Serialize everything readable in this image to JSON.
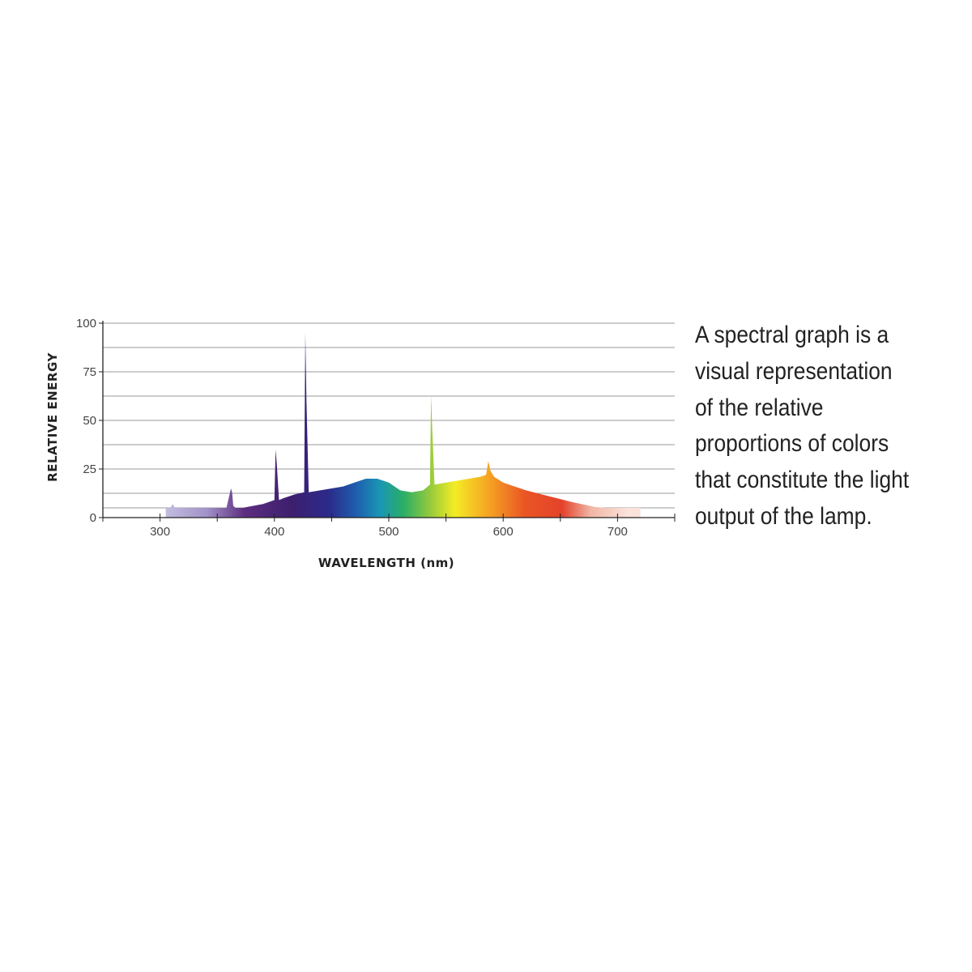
{
  "caption": "A spectral graph is a\nvisual representation\nof the relative\nproportions of colors\nthat constitute the light\noutput of the lamp.",
  "chart_data": {
    "type": "area",
    "title": "",
    "xlabel": "WAVELENGTH (nm)",
    "ylabel": "RELATIVE ENERGY",
    "xlim": [
      250,
      750
    ],
    "ylim": [
      0,
      100
    ],
    "x_ticks": [
      300,
      400,
      500,
      600,
      700
    ],
    "y_ticks": [
      0,
      25,
      50,
      75,
      100
    ],
    "grid": true,
    "fill": "visible-spectrum gradient",
    "series": [
      {
        "x": [
          305,
          309,
          311,
          313,
          320,
          358,
          362,
          363,
          364,
          366,
          372,
          390,
          400,
          401,
          402,
          404,
          408,
          418,
          426,
          427,
          428,
          430,
          440,
          460,
          470,
          480,
          490,
          500,
          510,
          520,
          530,
          536,
          537,
          538,
          540,
          550,
          560,
          570,
          580,
          585,
          587,
          589,
          592,
          600,
          620,
          640,
          660,
          680,
          690,
          700,
          720
        ],
        "y": [
          5,
          5,
          7,
          5,
          5,
          5,
          15,
          13,
          6,
          5,
          5,
          7,
          9,
          35,
          28,
          9,
          10,
          12,
          13,
          95,
          60,
          13,
          14,
          16,
          18,
          20,
          20,
          18,
          14,
          13,
          14,
          17,
          63,
          45,
          17,
          18,
          19,
          20,
          21,
          22,
          29,
          24,
          21,
          18,
          14,
          11,
          8,
          5.5,
          5,
          5,
          5
        ]
      }
    ]
  }
}
